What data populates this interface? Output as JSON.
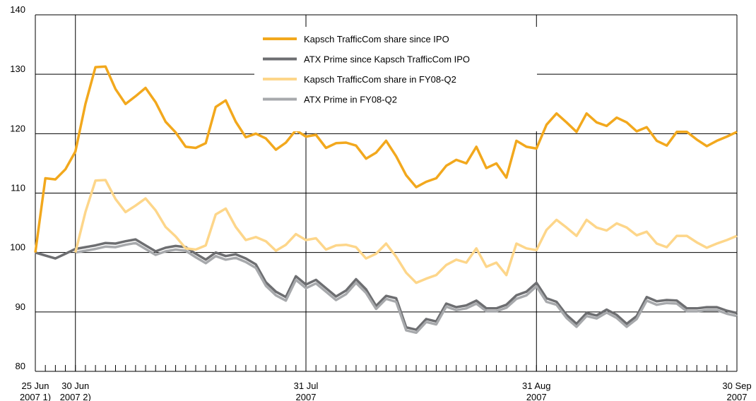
{
  "chart_data": {
    "type": "line",
    "categories": [
      "25 Jun\n2007 1)",
      null,
      null,
      null,
      "30 Jun\n2007 2)",
      null,
      null,
      null,
      null,
      null,
      null,
      null,
      null,
      null,
      null,
      null,
      null,
      null,
      null,
      null,
      null,
      null,
      null,
      null,
      null,
      null,
      null,
      "31 Jul\n2007",
      null,
      null,
      null,
      null,
      null,
      null,
      null,
      null,
      null,
      null,
      null,
      null,
      null,
      null,
      null,
      null,
      null,
      null,
      null,
      null,
      null,
      null,
      "31 Aug\n2007",
      null,
      null,
      null,
      null,
      null,
      null,
      null,
      null,
      null,
      null,
      null,
      null,
      null,
      null,
      null,
      null,
      null,
      null,
      null,
      "30 Sep\n2007"
    ],
    "series": [
      {
        "name": "Kapsch TrafficCom share since IPO",
        "color": "#f2a81d",
        "values": [
          100,
          112.5,
          112.3,
          114,
          117,
          125,
          131.2,
          131.3,
          127.5,
          125,
          126.3,
          127.7,
          125.3,
          122,
          120.2,
          117.8,
          117.6,
          118.4,
          124.5,
          125.6,
          122,
          119.4,
          120,
          119.2,
          117.3,
          118.5,
          120.6,
          119.5,
          119.8,
          117.6,
          118.4,
          118.5,
          118,
          115.8,
          116.8,
          118.8,
          116.2,
          113,
          111,
          111.9,
          112.5,
          114.6,
          115.6,
          115,
          117.8,
          114.2,
          115,
          112.6,
          118.8,
          117.8,
          117.5,
          121.5,
          123.4,
          121.9,
          120.3,
          123.4,
          121.9,
          121.3,
          122.7,
          121.9,
          120.4,
          121.1,
          118.8,
          118,
          120.3,
          120.3,
          119,
          117.9,
          118.8,
          119.5,
          120.3
        ]
      },
      {
        "name": "ATX Prime since Kapsch TrafficCom IPO",
        "color": "#6d6e71",
        "values": [
          100,
          99.5,
          99,
          99.8,
          100.6,
          100.9,
          101.2,
          101.6,
          101.5,
          101.9,
          102.2,
          101.2,
          100.2,
          100.8,
          101.1,
          100.9,
          99.8,
          98.8,
          100,
          99.4,
          99.7,
          99,
          98,
          95,
          93.4,
          92.5,
          96,
          94.6,
          95.4,
          94,
          92.6,
          93.6,
          95.5,
          93.8,
          91,
          92.7,
          92.3,
          87.4,
          87,
          88.8,
          88.4,
          91.4,
          90.8,
          91.1,
          91.9,
          90.6,
          90.6,
          91.2,
          92.8,
          93.4,
          94.9,
          92.3,
          91.7,
          89.5,
          88,
          89.8,
          89.4,
          90.4,
          89.5,
          88,
          89.3,
          92.5,
          91.8,
          92,
          91.9,
          90.6,
          90.6,
          90.8,
          90.8,
          90.2,
          89.8
        ]
      },
      {
        "name": "Kapsch TrafficCom share in FY08-Q2",
        "color": "#fdd68a",
        "values": [
          null,
          null,
          null,
          null,
          100,
          106.8,
          112.1,
          112.2,
          109,
          106.8,
          107.9,
          109.1,
          107.1,
          104.3,
          102.7,
          100.7,
          100.5,
          101.2,
          106.4,
          107.4,
          104.3,
          102.1,
          102.6,
          101.9,
          100.3,
          101.3,
          103.1,
          102.1,
          102.4,
          100.5,
          101.2,
          101.3,
          100.9,
          99,
          99.8,
          101.5,
          99.3,
          96.6,
          94.9,
          95.6,
          96.2,
          97.9,
          98.8,
          98.3,
          100.7,
          97.6,
          98.3,
          96.2,
          101.5,
          100.7,
          100.4,
          103.8,
          105.5,
          104.2,
          102.8,
          105.5,
          104.2,
          103.7,
          104.9,
          104.2,
          102.9,
          103.5,
          101.5,
          100.9,
          102.8,
          102.8,
          101.7,
          100.8,
          101.5,
          102.1,
          102.8
        ]
      },
      {
        "name": "ATX Prime in FY08-Q2",
        "color": "#a7a9ac",
        "values": [
          null,
          null,
          null,
          null,
          100,
          100.3,
          100.6,
          101,
          100.9,
          101.3,
          101.6,
          100.6,
          99.6,
          100.2,
          100.5,
          100.3,
          99.2,
          98.2,
          99.4,
          98.8,
          99.1,
          98.4,
          97.4,
          94.4,
          92.8,
          91.9,
          95.4,
          94,
          94.8,
          93.4,
          92,
          93,
          94.9,
          93.2,
          90.5,
          92.2,
          91.7,
          86.9,
          86.5,
          88.3,
          87.9,
          90.9,
          90.3,
          90.6,
          91.4,
          90.1,
          90.1,
          90.7,
          92.2,
          92.8,
          94.3,
          91.7,
          91.2,
          89,
          87.5,
          89.3,
          88.9,
          89.9,
          89,
          87.5,
          88.8,
          91.9,
          91.2,
          91.5,
          91.4,
          90.1,
          90.1,
          90.3,
          90.3,
          89.7,
          89.3
        ]
      }
    ],
    "ylim": [
      80,
      140
    ],
    "yticks": [
      80,
      90,
      100,
      110,
      120,
      130,
      140
    ],
    "grid": true,
    "legend": "top"
  }
}
